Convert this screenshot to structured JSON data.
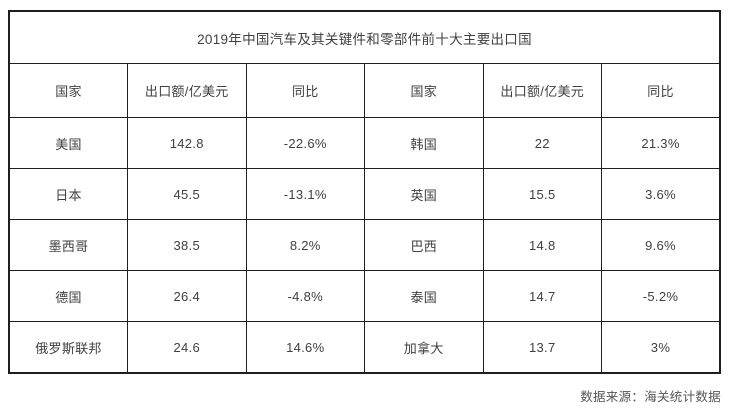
{
  "chart_data": {
    "type": "table",
    "title": "2019年中国汽车及其关键件和零部件前十大主要出口国",
    "columns": [
      "国家",
      "出口额/亿美元",
      "同比",
      "国家",
      "出口额/亿美元",
      "同比"
    ],
    "rows": [
      [
        "美国",
        "142.8",
        "-22.6%",
        "韩国",
        "22",
        "21.3%"
      ],
      [
        "日本",
        "45.5",
        "-13.1%",
        "英国",
        "15.5",
        "3.6%"
      ],
      [
        "墨西哥",
        "38.5",
        "8.2%",
        "巴西",
        "14.8",
        "9.6%"
      ],
      [
        "德国",
        "26.4",
        "-4.8%",
        "泰国",
        "14.7",
        "-5.2%"
      ],
      [
        "俄罗斯联邦",
        "24.6",
        "14.6%",
        "加拿大",
        "13.7",
        "3%"
      ]
    ],
    "source_note": "数据来源：海关统计数据"
  },
  "colors": {
    "border": "#1f1f1f",
    "table_text": "#404040",
    "source_text": "#555555",
    "background": "#ffffff"
  }
}
